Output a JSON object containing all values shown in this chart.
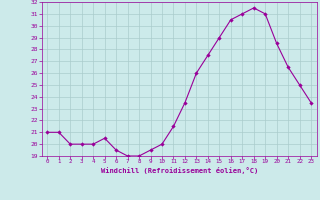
{
  "x": [
    0,
    1,
    2,
    3,
    4,
    5,
    6,
    7,
    8,
    9,
    10,
    11,
    12,
    13,
    14,
    15,
    16,
    17,
    18,
    19,
    20,
    21,
    22,
    23
  ],
  "y": [
    21,
    21,
    20,
    20,
    20,
    20.5,
    19.5,
    19,
    19,
    19.5,
    20,
    21.5,
    23.5,
    26,
    27.5,
    29,
    30.5,
    31,
    31.5,
    31,
    28.5,
    26.5,
    25,
    23.5
  ],
  "line_color": "#990099",
  "marker": "D",
  "marker_size": 2.2,
  "bg_color": "#cceaea",
  "grid_color": "#aacccc",
  "xlabel": "Windchill (Refroidissement éolien,°C)",
  "xlabel_color": "#990099",
  "tick_color": "#990099",
  "ylim": [
    19,
    32
  ],
  "yticks": [
    19,
    20,
    21,
    22,
    23,
    24,
    25,
    26,
    27,
    28,
    29,
    30,
    31,
    32
  ],
  "xlim": [
    -0.5,
    23.5
  ],
  "xticks": [
    0,
    1,
    2,
    3,
    4,
    5,
    6,
    7,
    8,
    9,
    10,
    11,
    12,
    13,
    14,
    15,
    16,
    17,
    18,
    19,
    20,
    21,
    22,
    23
  ]
}
